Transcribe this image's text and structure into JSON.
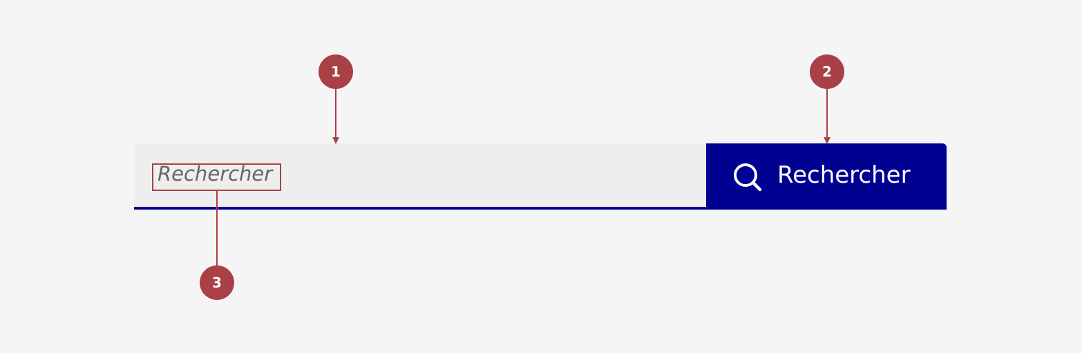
{
  "search": {
    "placeholder": "Rechercher",
    "button_label": "Rechercher",
    "button_icon": "search-icon"
  },
  "annotations": [
    {
      "number": "1"
    },
    {
      "number": "2"
    },
    {
      "number": "3"
    }
  ],
  "colors": {
    "background": "#f5f5f5",
    "input_background": "#eeeeee",
    "accent": "#000091",
    "annotation": "#a94045",
    "placeholder_text": "#666666",
    "button_text": "#ffffff"
  }
}
